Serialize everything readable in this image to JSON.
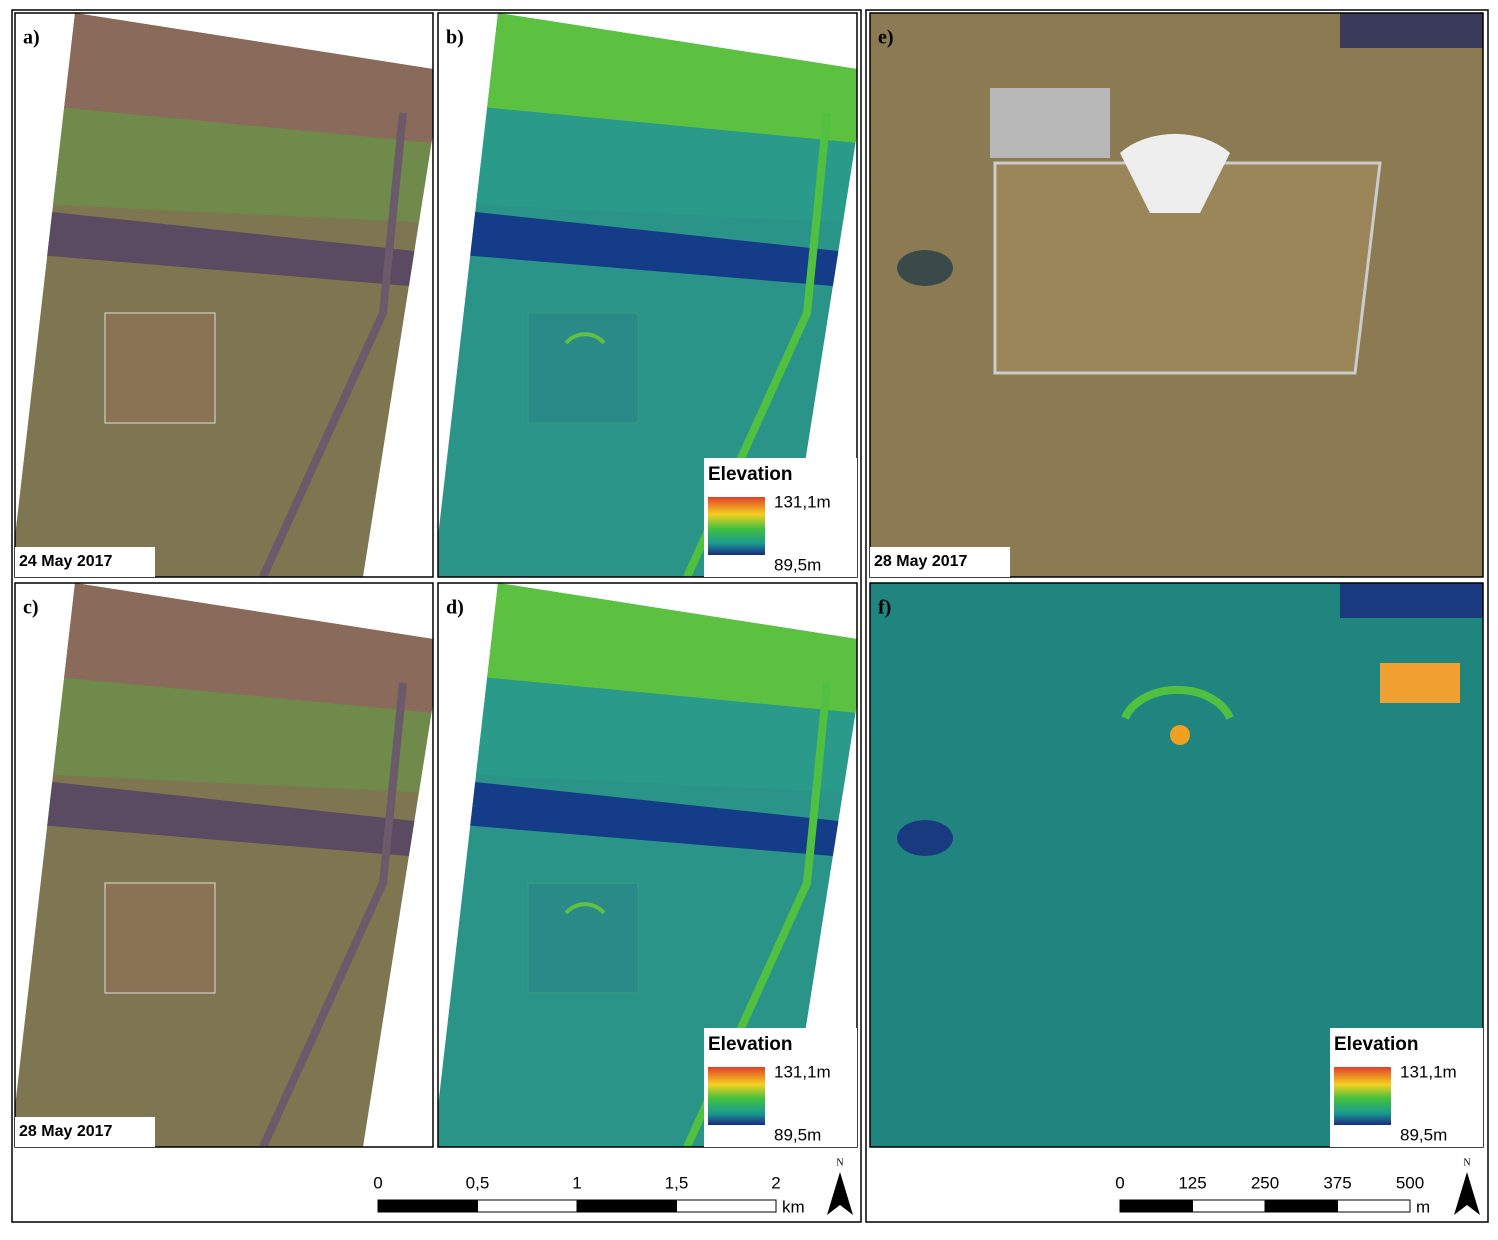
{
  "panels": [
    {
      "label": "a)",
      "date": "24 May 2017"
    },
    {
      "label": "b)",
      "legend": {
        "title": "Elevation",
        "max": "131,1m",
        "min": "89,5m"
      }
    },
    {
      "label": "c)",
      "date": "28 May 2017"
    },
    {
      "label": "d)",
      "legend": {
        "title": "Elevation",
        "max": "131,1m",
        "min": "89,5m"
      }
    },
    {
      "label": "e)",
      "date": "28 May 2017"
    },
    {
      "label": "f)",
      "legend": {
        "title": "Elevation",
        "max": "131,1m",
        "min": "89,5m"
      }
    }
  ],
  "scale_bars": [
    {
      "ticks": [
        "0",
        "0,5",
        "1",
        "1,5",
        "2"
      ],
      "unit": "km",
      "north": "N"
    },
    {
      "ticks": [
        "0",
        "125",
        "250",
        "375",
        "500"
      ],
      "unit": "m",
      "north": "N"
    }
  ]
}
